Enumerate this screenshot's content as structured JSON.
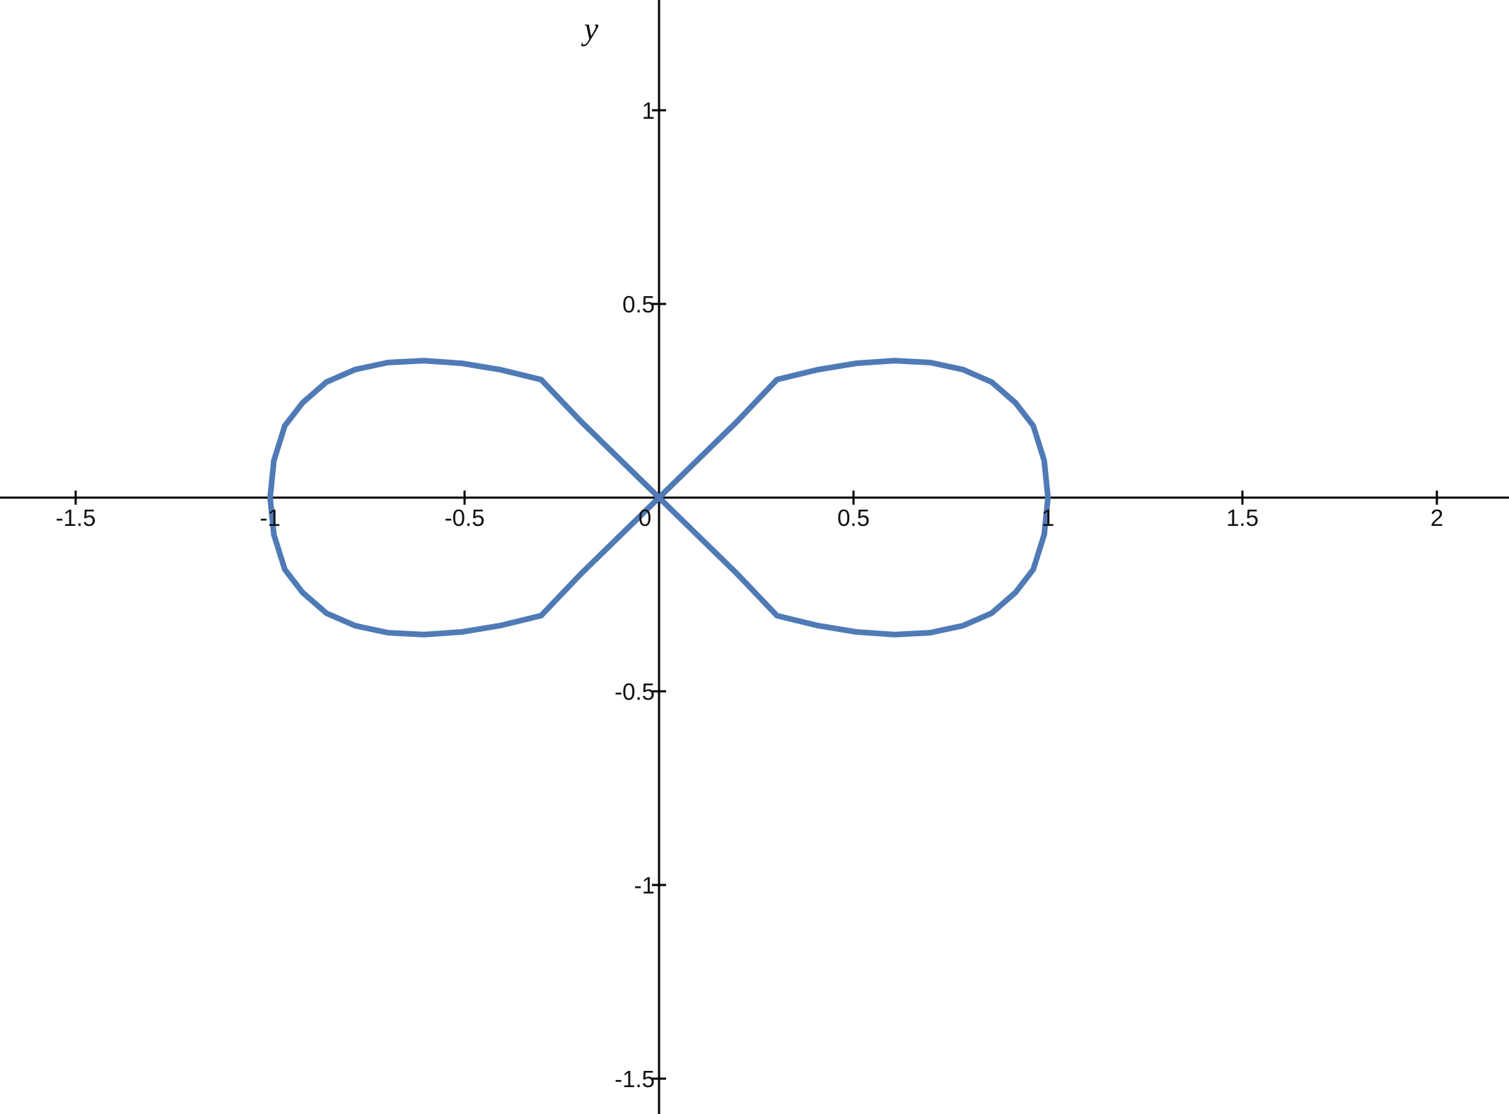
{
  "chart_data": {
    "type": "line",
    "title": "",
    "xlabel": "",
    "ylabel": "y",
    "xlim": [
      -1.7,
      2.2
    ],
    "ylim": [
      -1.6,
      1.25
    ],
    "x_ticks": [
      -1.5,
      -1,
      -0.5,
      0,
      0.5,
      1,
      1.5,
      2
    ],
    "x_tick_labels": [
      "-1.5",
      "-1",
      "-0.5",
      "0",
      "0.5",
      "1",
      "1.5",
      "2"
    ],
    "y_ticks": [
      -1.5,
      -1,
      -0.5,
      0.5,
      1
    ],
    "y_tick_labels": [
      "-1.5",
      "-1",
      "-0.5",
      "0.5",
      "1"
    ],
    "grid": false,
    "legend": "none",
    "series": [
      {
        "color": "#4f7ab5",
        "x": [
          1.0,
          0.9904,
          0.9621,
          0.9165,
          0.8555,
          0.7815,
          0.6971,
          0.6048,
          0.5071,
          0.4061,
          0.3033,
          0.2,
          0.0,
          -0.2,
          -0.3033,
          -0.4061,
          -0.5071,
          -0.6048,
          -0.6971,
          -0.7815,
          -0.8555,
          -0.9165,
          -0.9621,
          -0.9904,
          -1.0,
          -0.9904,
          -0.9621,
          -0.9165,
          -0.8555,
          -0.7815,
          -0.6971,
          -0.6048,
          -0.5071,
          -0.4061,
          -0.3033,
          -0.2,
          0.0,
          0.2,
          0.3033,
          0.4061,
          0.5071,
          0.6048,
          0.6971,
          0.7815,
          0.8555,
          0.9165,
          0.9621,
          0.9904,
          1.0
        ],
        "y": [
          0.0,
          0.0955,
          0.1856,
          0.2448,
          0.2981,
          0.3306,
          0.3487,
          0.3536,
          0.3467,
          0.3299,
          0.3047,
          0.196,
          0.0,
          -0.196,
          -0.3047,
          -0.3299,
          -0.3467,
          -0.3536,
          -0.3487,
          -0.3306,
          -0.2981,
          -0.2448,
          -0.1856,
          -0.0955,
          0.0,
          0.0955,
          0.1856,
          0.2448,
          0.2981,
          0.3306,
          0.3487,
          0.3536,
          0.3467,
          0.3299,
          0.3047,
          0.196,
          0.0,
          -0.196,
          -0.3047,
          -0.3299,
          -0.3467,
          -0.3536,
          -0.3487,
          -0.3306,
          -0.2981,
          -0.2448,
          -0.1856,
          -0.0955,
          0.0
        ]
      }
    ]
  }
}
